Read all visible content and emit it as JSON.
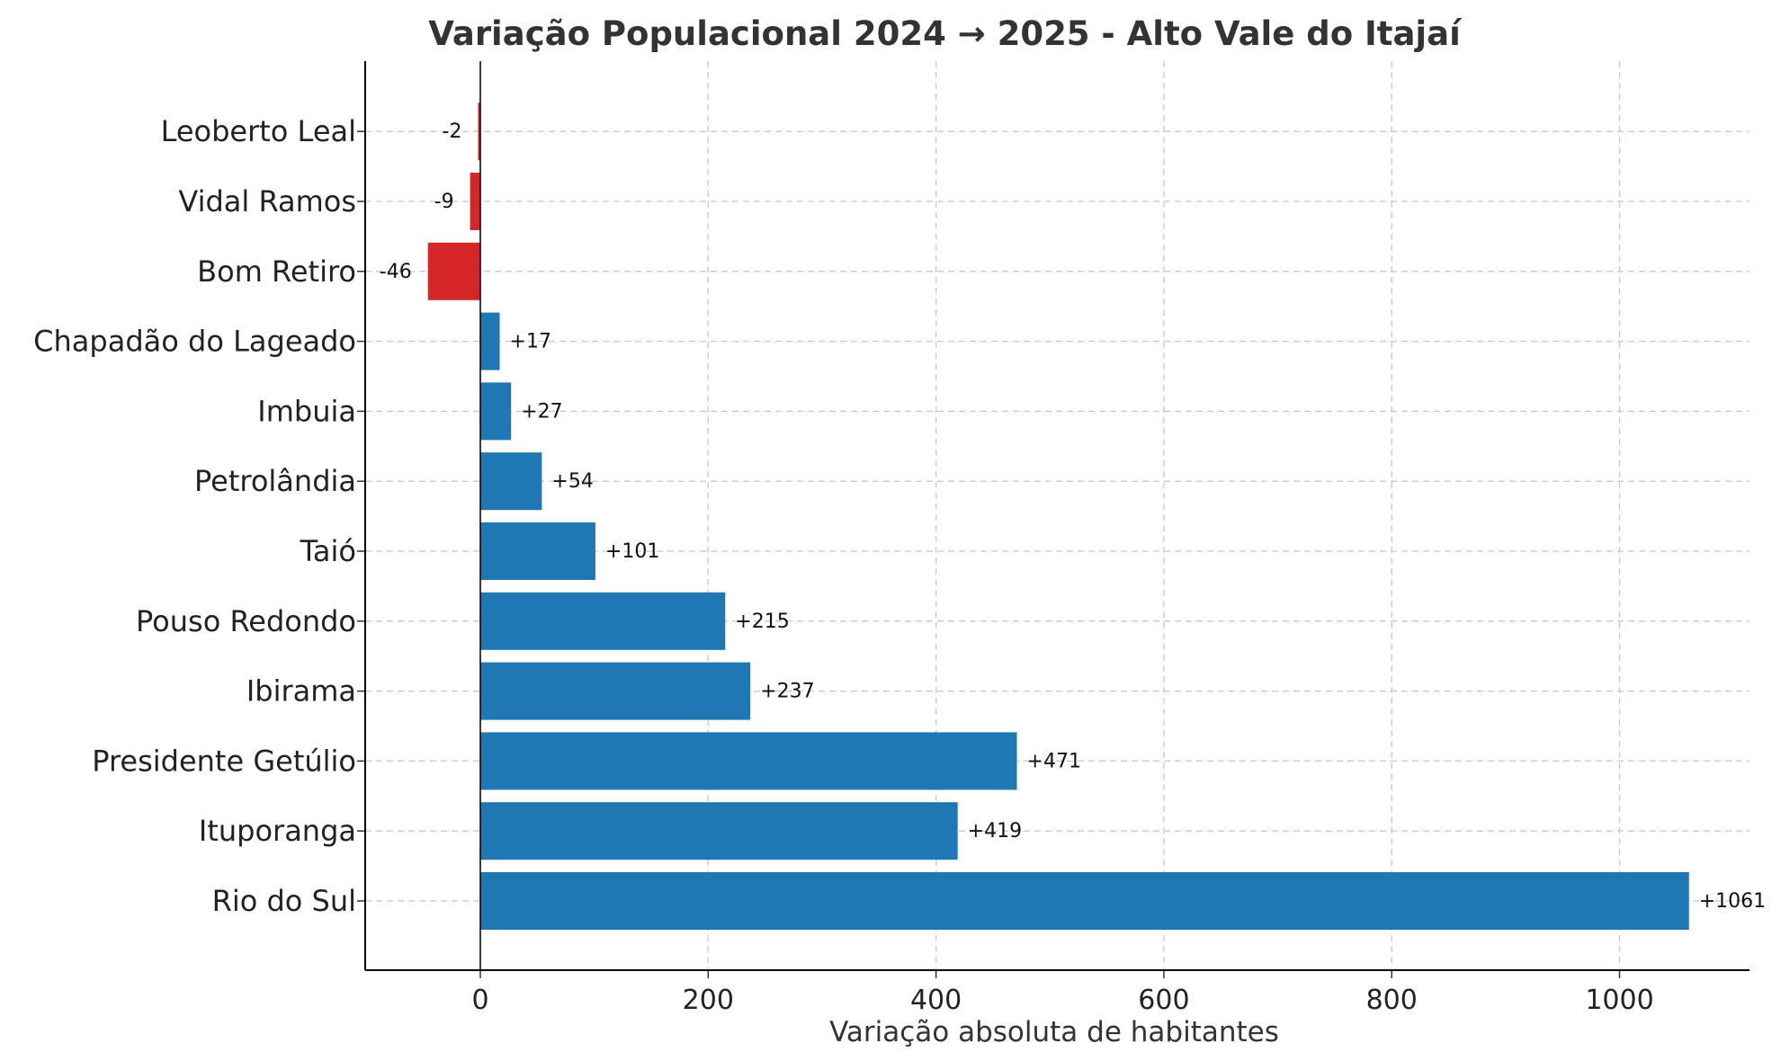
{
  "chart_data": {
    "type": "bar",
    "orientation": "horizontal",
    "title": "Variação Populacional 2024 → 2025 - Alto Vale do Itajaí",
    "xlabel": "Variação absoluta de habitantes",
    "ylabel": "",
    "xlim": [
      -100,
      1115
    ],
    "xticks": [
      0,
      200,
      400,
      600,
      800,
      1000
    ],
    "grid": true,
    "categories": [
      "Rio do Sul",
      "Ituporanga",
      "Presidente Getúlio",
      "Ibirama",
      "Pouso Redondo",
      "Taió",
      "Petrolândia",
      "Imbuia",
      "Chapadão do Lageado",
      "Bom Retiro",
      "Vidal Ramos",
      "Leoberto Leal"
    ],
    "values": [
      1061,
      419,
      471,
      237,
      215,
      101,
      54,
      27,
      17,
      -46,
      -9,
      -2
    ],
    "value_labels": [
      "+1061",
      "+419",
      "+471",
      "+237",
      "+215",
      "+101",
      "+54",
      "+27",
      "+17",
      "-46",
      "-9",
      "-2"
    ],
    "colors": {
      "positive": "#1f77b4",
      "negative": "#d62728"
    }
  }
}
